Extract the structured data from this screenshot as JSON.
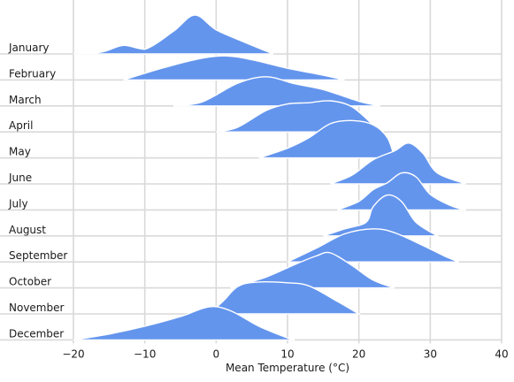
{
  "chart_data": {
    "type": "ridgeline",
    "xlabel": "Mean Temperature (°C)",
    "xlim": [
      -20,
      40
    ],
    "xticks": [
      -20,
      -10,
      0,
      10,
      20,
      30,
      40
    ],
    "grid": true,
    "fill_color": "#6495ed",
    "outline_color": "#ffffff",
    "series": [
      {
        "name": "January",
        "x": [
          -20,
          -16,
          -13,
          -10,
          -6,
          -3,
          0,
          4,
          8
        ],
        "density": [
          0.0,
          0.05,
          0.22,
          0.12,
          0.58,
          1.0,
          0.62,
          0.3,
          0.0
        ]
      },
      {
        "name": "February",
        "x": [
          -13,
          -8,
          -3,
          1,
          5,
          10,
          15,
          18
        ],
        "density": [
          0.0,
          0.28,
          0.52,
          0.62,
          0.52,
          0.3,
          0.12,
          0.0
        ]
      },
      {
        "name": "March",
        "x": [
          -6,
          -2,
          3,
          7,
          11,
          15,
          20,
          23
        ],
        "density": [
          0.0,
          0.1,
          0.58,
          0.75,
          0.57,
          0.42,
          0.12,
          0.0
        ]
      },
      {
        "name": "April",
        "x": [
          0,
          3,
          7,
          10,
          13,
          16,
          19,
          22,
          23
        ],
        "density": [
          0.0,
          0.12,
          0.55,
          0.72,
          0.75,
          0.8,
          0.65,
          0.18,
          0.0
        ]
      },
      {
        "name": "May",
        "x": [
          6,
          10,
          13,
          16,
          19,
          22,
          24,
          25
        ],
        "density": [
          0.0,
          0.25,
          0.52,
          0.88,
          0.96,
          0.85,
          0.52,
          0.0
        ]
      },
      {
        "name": "June",
        "x": [
          16,
          19,
          22,
          25,
          27,
          29,
          31,
          35
        ],
        "density": [
          0.0,
          0.22,
          0.62,
          0.85,
          1.05,
          0.78,
          0.28,
          0.0
        ]
      },
      {
        "name": "July",
        "x": [
          17,
          20,
          22,
          24,
          26,
          28,
          30,
          33,
          35
        ],
        "density": [
          0.0,
          0.22,
          0.52,
          0.7,
          0.95,
          0.85,
          0.4,
          0.1,
          0.0
        ]
      },
      {
        "name": "August",
        "x": [
          15,
          18,
          21,
          22,
          24,
          26,
          28,
          31
        ],
        "density": [
          0.0,
          0.18,
          0.35,
          0.75,
          1.05,
          0.88,
          0.35,
          0.0
        ]
      },
      {
        "name": "September",
        "x": [
          10,
          14,
          18,
          22,
          25,
          29,
          32,
          34
        ],
        "density": [
          0.0,
          0.35,
          0.72,
          0.85,
          0.75,
          0.42,
          0.15,
          0.0
        ]
      },
      {
        "name": "October",
        "x": [
          2,
          7,
          11,
          14,
          16,
          19,
          22,
          25
        ],
        "density": [
          0.0,
          0.28,
          0.6,
          0.82,
          0.9,
          0.58,
          0.2,
          0.0
        ]
      },
      {
        "name": "November",
        "x": [
          -4,
          0,
          3,
          6,
          10,
          13,
          17,
          20
        ],
        "density": [
          0.0,
          0.18,
          0.7,
          0.82,
          0.8,
          0.72,
          0.32,
          0.0
        ]
      },
      {
        "name": "December",
        "x": [
          -20,
          -15,
          -10,
          -5,
          -1,
          2,
          6,
          10,
          11
        ],
        "density": [
          0.0,
          0.15,
          0.35,
          0.6,
          0.85,
          0.75,
          0.35,
          0.05,
          0.0
        ]
      }
    ]
  }
}
